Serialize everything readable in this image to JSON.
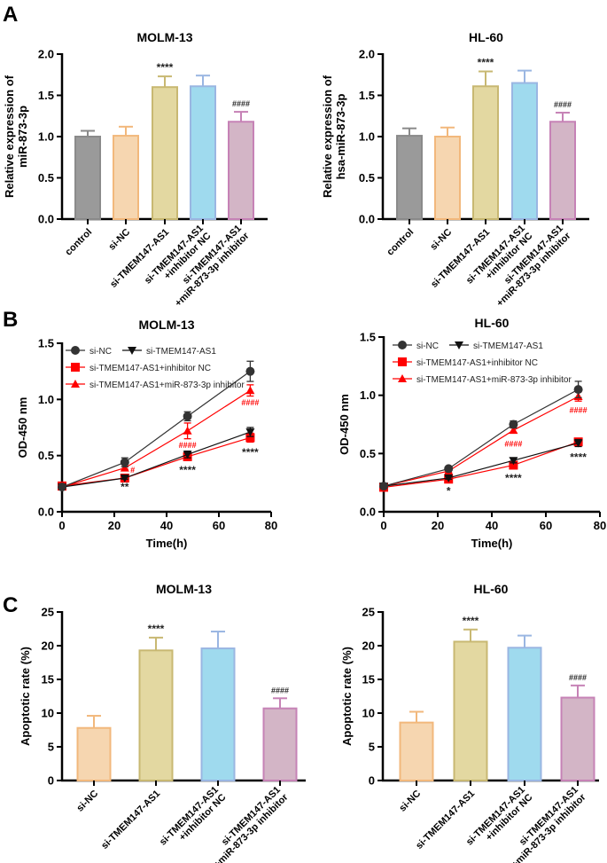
{
  "panel_labels": [
    "A",
    "B",
    "C"
  ],
  "chart_data": [
    {
      "id": "A1",
      "type": "bar",
      "title": "MOLM-13",
      "ylabel": [
        "Relative expression of",
        "miR-873-3p"
      ],
      "ylim": [
        0,
        2.0
      ],
      "yticks": [
        0.0,
        0.5,
        1.0,
        1.5,
        2.0
      ],
      "ytick_labels": [
        "0.0",
        "0.5",
        "1.0",
        "1.5",
        "2.0"
      ],
      "categories": [
        [
          "control"
        ],
        [
          "si-NC"
        ],
        [
          "si-TMEM147-AS1"
        ],
        [
          "si-TMEM147-AS1",
          "+inhibitor NC"
        ],
        [
          "si-TMEM147-AS1",
          "+miR-873-3p inhibitor"
        ]
      ],
      "values": [
        1.0,
        1.01,
        1.6,
        1.61,
        1.18
      ],
      "errors": [
        0.07,
        0.11,
        0.13,
        0.13,
        0.12
      ],
      "annotations": [
        "",
        "",
        "****",
        "",
        "####"
      ]
    },
    {
      "id": "A2",
      "type": "bar",
      "title": "HL-60",
      "ylabel": [
        "Relative expression of",
        "hsa-miR-873-3p"
      ],
      "ylim": [
        0,
        2.0
      ],
      "yticks": [
        0.0,
        0.5,
        1.0,
        1.5,
        2.0
      ],
      "ytick_labels": [
        "0.0",
        "0.5",
        "1.0",
        "1.5",
        "2.0"
      ],
      "categories": [
        [
          "control"
        ],
        [
          "si-NC"
        ],
        [
          "si-TMEM147-AS1"
        ],
        [
          "si-TMEM147-AS1",
          "+inhibitor NC"
        ],
        [
          "si-TMEM147-AS1",
          "+miR-873-3p inhibitor"
        ]
      ],
      "values": [
        1.01,
        1.0,
        1.61,
        1.65,
        1.18
      ],
      "errors": [
        0.09,
        0.11,
        0.18,
        0.15,
        0.11
      ],
      "annotations": [
        "",
        "",
        "****",
        "",
        "####"
      ]
    },
    {
      "id": "B1",
      "type": "line",
      "title": "MOLM-13",
      "xlabel": "Time(h)",
      "ylabel": "OD-450 nm",
      "xlim": [
        0,
        80
      ],
      "xticks": [
        0,
        20,
        40,
        60,
        80
      ],
      "ylim": [
        0,
        1.5
      ],
      "yticks": [
        0.0,
        0.5,
        1.0,
        1.5
      ],
      "ytick_labels": [
        "0.0",
        "0.5",
        "1.0",
        "1.5"
      ],
      "x": [
        0,
        24,
        48,
        72
      ],
      "series": [
        {
          "name": "si-NC",
          "values": [
            0.22,
            0.44,
            0.85,
            1.25
          ],
          "errors": [
            0.01,
            0.04,
            0.04,
            0.09
          ]
        },
        {
          "name": "si-TMEM147-AS1",
          "values": [
            0.22,
            0.3,
            0.51,
            0.71
          ],
          "errors": [
            0.01,
            0.01,
            0.03,
            0.04
          ]
        },
        {
          "name": "si-TMEM147-AS1+inhibitor NC",
          "values": [
            0.23,
            0.3,
            0.49,
            0.66
          ],
          "errors": [
            0.01,
            0.01,
            0.03,
            0.04
          ]
        },
        {
          "name": "si-TMEM147-AS1+miR-873-3p inhibitor",
          "values": [
            0.22,
            0.39,
            0.72,
            1.08
          ],
          "errors": [
            0.01,
            0.01,
            0.07,
            0.05
          ]
        }
      ],
      "annotations": [
        {
          "text": "**",
          "x": 24,
          "y": 0.22,
          "color": "black"
        },
        {
          "text": "#",
          "x": 27,
          "y": 0.38,
          "color": "red"
        },
        {
          "text": "****",
          "x": 48,
          "y": 0.37,
          "color": "black"
        },
        {
          "text": "####",
          "x": 48,
          "y": 0.6,
          "color": "red"
        },
        {
          "text": "****",
          "x": 72,
          "y": 0.53,
          "color": "black"
        },
        {
          "text": "####",
          "x": 72,
          "y": 0.98,
          "color": "red"
        }
      ]
    },
    {
      "id": "B2",
      "type": "line",
      "title": "HL-60",
      "xlabel": "Time(h)",
      "ylabel": "OD-450 nm",
      "xlim": [
        0,
        80
      ],
      "xticks": [
        0,
        20,
        40,
        60,
        80
      ],
      "ylim": [
        0,
        1.5
      ],
      "yticks": [
        0.0,
        0.5,
        1.0,
        1.5
      ],
      "ytick_labels": [
        "0.0",
        "0.5",
        "1.0",
        "1.5"
      ],
      "x": [
        0,
        24,
        48,
        72
      ],
      "series": [
        {
          "name": "si-NC",
          "values": [
            0.22,
            0.37,
            0.75,
            1.05
          ],
          "errors": [
            0.01,
            0.01,
            0.03,
            0.07
          ]
        },
        {
          "name": "si-TMEM147-AS1",
          "values": [
            0.22,
            0.29,
            0.44,
            0.59
          ],
          "errors": [
            0.01,
            0.01,
            0.02,
            0.03
          ]
        },
        {
          "name": "si-TMEM147-AS1+inhibitor NC",
          "values": [
            0.21,
            0.28,
            0.4,
            0.6
          ],
          "errors": [
            0.01,
            0.01,
            0.02,
            0.03
          ]
        },
        {
          "name": "si-TMEM147-AS1+miR-873-3p inhibitor",
          "values": [
            0.22,
            0.35,
            0.7,
            0.99
          ],
          "errors": [
            0.01,
            0.01,
            0.02,
            0.04
          ]
        }
      ],
      "annotations": [
        {
          "text": "*",
          "x": 24,
          "y": 0.18,
          "color": "black"
        },
        {
          "text": "****",
          "x": 48,
          "y": 0.29,
          "color": "black"
        },
        {
          "text": "####",
          "x": 48,
          "y": 0.59,
          "color": "red"
        },
        {
          "text": "****",
          "x": 72,
          "y": 0.47,
          "color": "black"
        },
        {
          "text": "####",
          "x": 72,
          "y": 0.88,
          "color": "red"
        }
      ]
    },
    {
      "id": "C1",
      "type": "bar",
      "title": "MOLM-13",
      "ylabel": [
        "Apoptotic rate (%)"
      ],
      "ylim": [
        0,
        25
      ],
      "yticks": [
        0,
        5,
        10,
        15,
        20,
        25
      ],
      "ytick_labels": [
        "0",
        "5",
        "10",
        "15",
        "20",
        "25"
      ],
      "categories": [
        [
          "si-NC"
        ],
        [
          "si-TMEM147-AS1"
        ],
        [
          "si-TMEM147-AS1",
          "+inhibitor NC"
        ],
        [
          "si-TMEM147-AS1",
          "+miR-873-3p inhibitor"
        ]
      ],
      "values": [
        7.8,
        19.3,
        19.6,
        10.7
      ],
      "errors": [
        1.8,
        1.9,
        2.5,
        1.5
      ],
      "annotations": [
        "",
        "****",
        "",
        "####"
      ]
    },
    {
      "id": "C2",
      "type": "bar",
      "title": "HL-60",
      "ylabel": [
        "Apoptotic rate (%)"
      ],
      "ylim": [
        0,
        25
      ],
      "yticks": [
        0,
        5,
        10,
        15,
        20,
        25
      ],
      "ytick_labels": [
        "0",
        "5",
        "10",
        "15",
        "20",
        "25"
      ],
      "categories": [
        [
          "si-NC"
        ],
        [
          "si-TMEM147-AS1"
        ],
        [
          "si-TMEM147-AS1",
          "+inhibitor NC"
        ],
        [
          "si-TMEM147-AS1",
          "+miR-873-3p inhibitor"
        ]
      ],
      "values": [
        8.6,
        20.6,
        19.7,
        12.3
      ],
      "errors": [
        1.6,
        1.8,
        1.8,
        1.8
      ],
      "annotations": [
        "",
        "****",
        "",
        "####"
      ]
    }
  ],
  "colors": {
    "bars5": [
      [
        "#9a9a9a",
        "#8a8a8a"
      ],
      [
        "#f6d6b0",
        "#f2b87c"
      ],
      [
        "#e3d8a1",
        "#c8b872"
      ],
      [
        "#9fdaee",
        "#9ab6e2"
      ],
      [
        "#d3b5c6",
        "#c682b6"
      ]
    ],
    "bars4": [
      [
        "#f6d6b0",
        "#f2b87c"
      ],
      [
        "#e3d8a1",
        "#c8b872"
      ],
      [
        "#9fdaee",
        "#9ab6e2"
      ],
      [
        "#d3b5c6",
        "#c682b6"
      ]
    ],
    "lines": [
      "#333333",
      "#111111",
      "#ff0000",
      "#ff0000"
    ],
    "markers": [
      "circle",
      "triangle-down",
      "square",
      "triangle-up"
    ]
  }
}
